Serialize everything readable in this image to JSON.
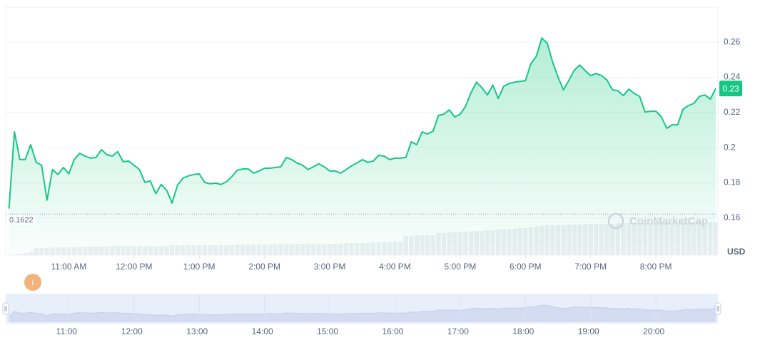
{
  "chart_data": {
    "type": "line",
    "x": [
      605,
      610,
      615,
      620,
      625,
      630,
      635,
      640,
      645,
      650,
      655,
      660,
      665,
      670,
      675,
      680,
      685,
      690,
      695,
      700,
      705,
      710,
      715,
      720,
      725,
      730,
      735,
      740,
      745,
      750,
      755,
      760,
      765,
      770,
      775,
      780,
      785,
      790,
      795,
      800,
      805,
      810,
      815,
      820,
      825,
      830,
      835,
      840,
      845,
      850,
      855,
      860,
      865,
      870,
      875,
      880,
      885,
      890,
      895,
      900,
      905,
      910,
      915,
      920,
      925,
      930,
      935,
      940,
      945,
      950,
      955,
      960,
      965,
      970,
      975,
      980,
      985,
      990,
      995,
      1000,
      1005,
      1010,
      1015,
      1020,
      1025,
      1030,
      1035,
      1040,
      1045,
      1050,
      1055,
      1060,
      1065,
      1070,
      1075,
      1080,
      1085,
      1090,
      1095,
      1100,
      1105,
      1110,
      1115,
      1120,
      1125,
      1130,
      1135,
      1140,
      1145,
      1150,
      1155,
      1160,
      1165,
      1170,
      1175,
      1180,
      1185,
      1190,
      1195,
      1200,
      1205,
      1210,
      1215,
      1220,
      1225,
      1230,
      1235,
      1240,
      1245,
      1250,
      1255
    ],
    "series": [
      {
        "color": "#16c784",
        "values": [
          0.1653,
          0.209,
          0.1932,
          0.1932,
          0.2017,
          0.1916,
          0.19,
          0.1701,
          0.1875,
          0.1847,
          0.1887,
          0.1851,
          0.1932,
          0.1968,
          0.1952,
          0.194,
          0.1944,
          0.1989,
          0.196,
          0.1952,
          0.1977,
          0.192,
          0.1924,
          0.19,
          0.1875,
          0.1802,
          0.1811,
          0.1738,
          0.179,
          0.1758,
          0.1685,
          0.1786,
          0.1827,
          0.1839,
          0.1847,
          0.1851,
          0.1802,
          0.1794,
          0.1798,
          0.179,
          0.1806,
          0.1835,
          0.1871,
          0.1879,
          0.1879,
          0.1855,
          0.1867,
          0.1883,
          0.1883,
          0.1887,
          0.1891,
          0.1944,
          0.1932,
          0.1912,
          0.19,
          0.1875,
          0.1891,
          0.1908,
          0.1891,
          0.1867,
          0.1867,
          0.1855,
          0.1875,
          0.1896,
          0.1912,
          0.1932,
          0.1916,
          0.1924,
          0.1956,
          0.1952,
          0.1932,
          0.194,
          0.194,
          0.1944,
          0.2033,
          0.2017,
          0.209,
          0.2078,
          0.2094,
          0.2183,
          0.2191,
          0.2215,
          0.2175,
          0.2191,
          0.2236,
          0.2313,
          0.2373,
          0.2341,
          0.23,
          0.2357,
          0.228,
          0.2349,
          0.2365,
          0.2373,
          0.2377,
          0.2381,
          0.2479,
          0.2519,
          0.2624,
          0.2596,
          0.2487,
          0.2402,
          0.2329,
          0.2385,
          0.2442,
          0.247,
          0.2438,
          0.241,
          0.2422,
          0.241,
          0.2385,
          0.2329,
          0.2325,
          0.2296,
          0.2333,
          0.2309,
          0.2292,
          0.2203,
          0.2207,
          0.2207,
          0.2175,
          0.211,
          0.213,
          0.213,
          0.2219,
          0.224,
          0.2252,
          0.2292,
          0.23,
          0.2276,
          0.2337
        ]
      }
    ],
    "xlim": [
      602,
      1257
    ],
    "xticks": [
      {
        "value": 660,
        "label": "11:00 AM"
      },
      {
        "value": 720,
        "label": "12:00 PM"
      },
      {
        "value": 780,
        "label": "1:00 PM"
      },
      {
        "value": 840,
        "label": "2:00 PM"
      },
      {
        "value": 900,
        "label": "3:00 PM"
      },
      {
        "value": 960,
        "label": "4:00 PM"
      },
      {
        "value": 1020,
        "label": "5:00 PM"
      },
      {
        "value": 1080,
        "label": "6:00 PM"
      },
      {
        "value": 1140,
        "label": "7:00 PM"
      },
      {
        "value": 1200,
        "label": "8:00 PM"
      }
    ],
    "ylim": [
      0.14,
      0.28
    ],
    "yticks": [
      0.16,
      0.18,
      0.2,
      0.22,
      0.24,
      0.26
    ],
    "y_unit": "USD",
    "grid": true,
    "price_tag": "0.23",
    "reference_line": {
      "value": 0.1622,
      "label": "0.1622"
    },
    "volume": {
      "color": "#eceff3",
      "lim": [
        0,
        50
      ],
      "values": [
        1,
        1,
        2,
        3,
        4,
        10,
        10,
        10,
        11,
        11,
        11,
        11,
        11,
        12,
        12,
        12,
        12,
        12,
        12,
        13,
        13,
        13,
        13,
        13,
        13,
        13,
        13,
        13,
        13,
        13,
        14,
        14,
        14,
        14,
        14,
        14,
        14,
        14,
        14,
        14,
        14,
        14,
        15,
        15,
        15,
        15,
        15,
        15,
        15,
        15,
        16,
        16,
        16,
        16,
        16,
        16,
        16,
        16,
        16,
        16,
        16,
        16,
        17,
        17,
        17,
        17,
        17,
        18,
        18,
        18,
        18,
        19,
        19,
        27,
        27,
        28,
        28,
        28,
        28,
        31,
        31,
        32,
        32,
        32,
        33,
        33,
        34,
        34,
        35,
        35,
        36,
        36,
        37,
        37,
        38,
        38,
        39,
        40,
        41,
        42,
        42,
        42,
        42,
        43,
        43,
        43,
        43,
        44,
        44,
        44,
        44,
        44,
        45,
        45,
        45,
        45,
        45,
        45,
        45,
        45,
        45,
        46,
        46,
        46,
        46,
        46,
        47,
        47,
        46,
        46,
        46
      ]
    },
    "navigator": {
      "xticks": [
        {
          "value": 660,
          "label": "11:00"
        },
        {
          "value": 720,
          "label": "12:00"
        },
        {
          "value": 780,
          "label": "13:00"
        },
        {
          "value": 840,
          "label": "14:00"
        },
        {
          "value": 900,
          "label": "15:00"
        },
        {
          "value": 960,
          "label": "16:00"
        },
        {
          "value": 1020,
          "label": "17:00"
        },
        {
          "value": 1080,
          "label": "18:00"
        },
        {
          "value": 1140,
          "label": "19:00"
        },
        {
          "value": 1200,
          "label": "20:00"
        }
      ]
    },
    "watermark": "CoinMarketCap",
    "info_badge": "i"
  }
}
